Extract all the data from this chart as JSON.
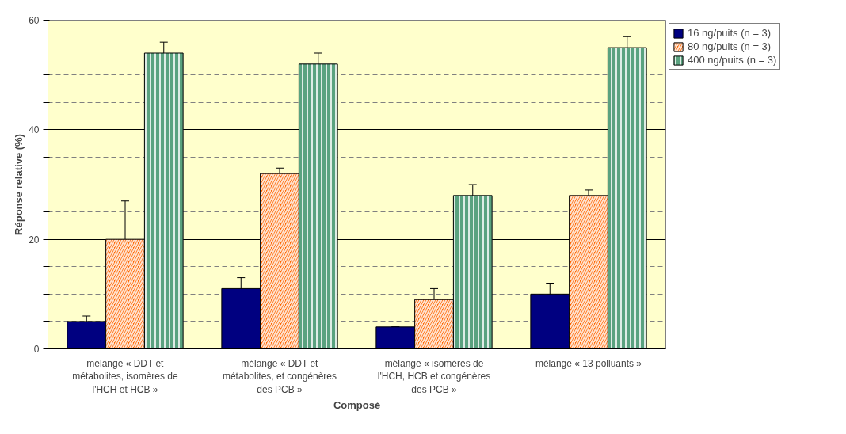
{
  "chart_data": {
    "type": "bar",
    "xlabel": "Composé",
    "ylabel": "Réponse relative (%)",
    "categories": [
      "mélange « DDT et\nmétabolites, isomères de\nl'HCH et HCB »",
      "mélange « DDT et\nmétabolites, et congénères\ndes PCB »",
      "mélange « isomères de\nl'HCH, HCB et congénères\ndes PCB »",
      "mélange « 13 polluants »"
    ],
    "series": [
      {
        "name": "16 ng/puits (n = 3)",
        "color": "#000080",
        "values": [
          5,
          11,
          4,
          10
        ],
        "errors": [
          1,
          2,
          0,
          2
        ]
      },
      {
        "name": "80 ng/puits (n = 3)",
        "color": "#ff6600",
        "values": [
          20,
          32,
          9,
          28
        ],
        "errors": [
          7,
          1,
          2,
          1
        ]
      },
      {
        "name": "400 ng/puits (n = 3)",
        "color": "#5aa27f",
        "values": [
          54,
          52,
          28,
          55
        ],
        "errors": [
          2,
          2,
          2,
          2
        ]
      }
    ],
    "ylim": [
      0,
      60
    ],
    "yticks": [
      0,
      {
        "value": 5,
        "label": null
      },
      {
        "value": 10,
        "label": null
      },
      {
        "value": 15,
        "label": null
      },
      20,
      {
        "value": 25,
        "label": null
      },
      {
        "value": 30,
        "label": null
      },
      {
        "value": 35,
        "label": null
      },
      40,
      {
        "value": 45,
        "label": null
      },
      {
        "value": 50,
        "label": null
      },
      {
        "value": 55,
        "label": null
      },
      60
    ],
    "grid": "y",
    "legend": "top right"
  }
}
